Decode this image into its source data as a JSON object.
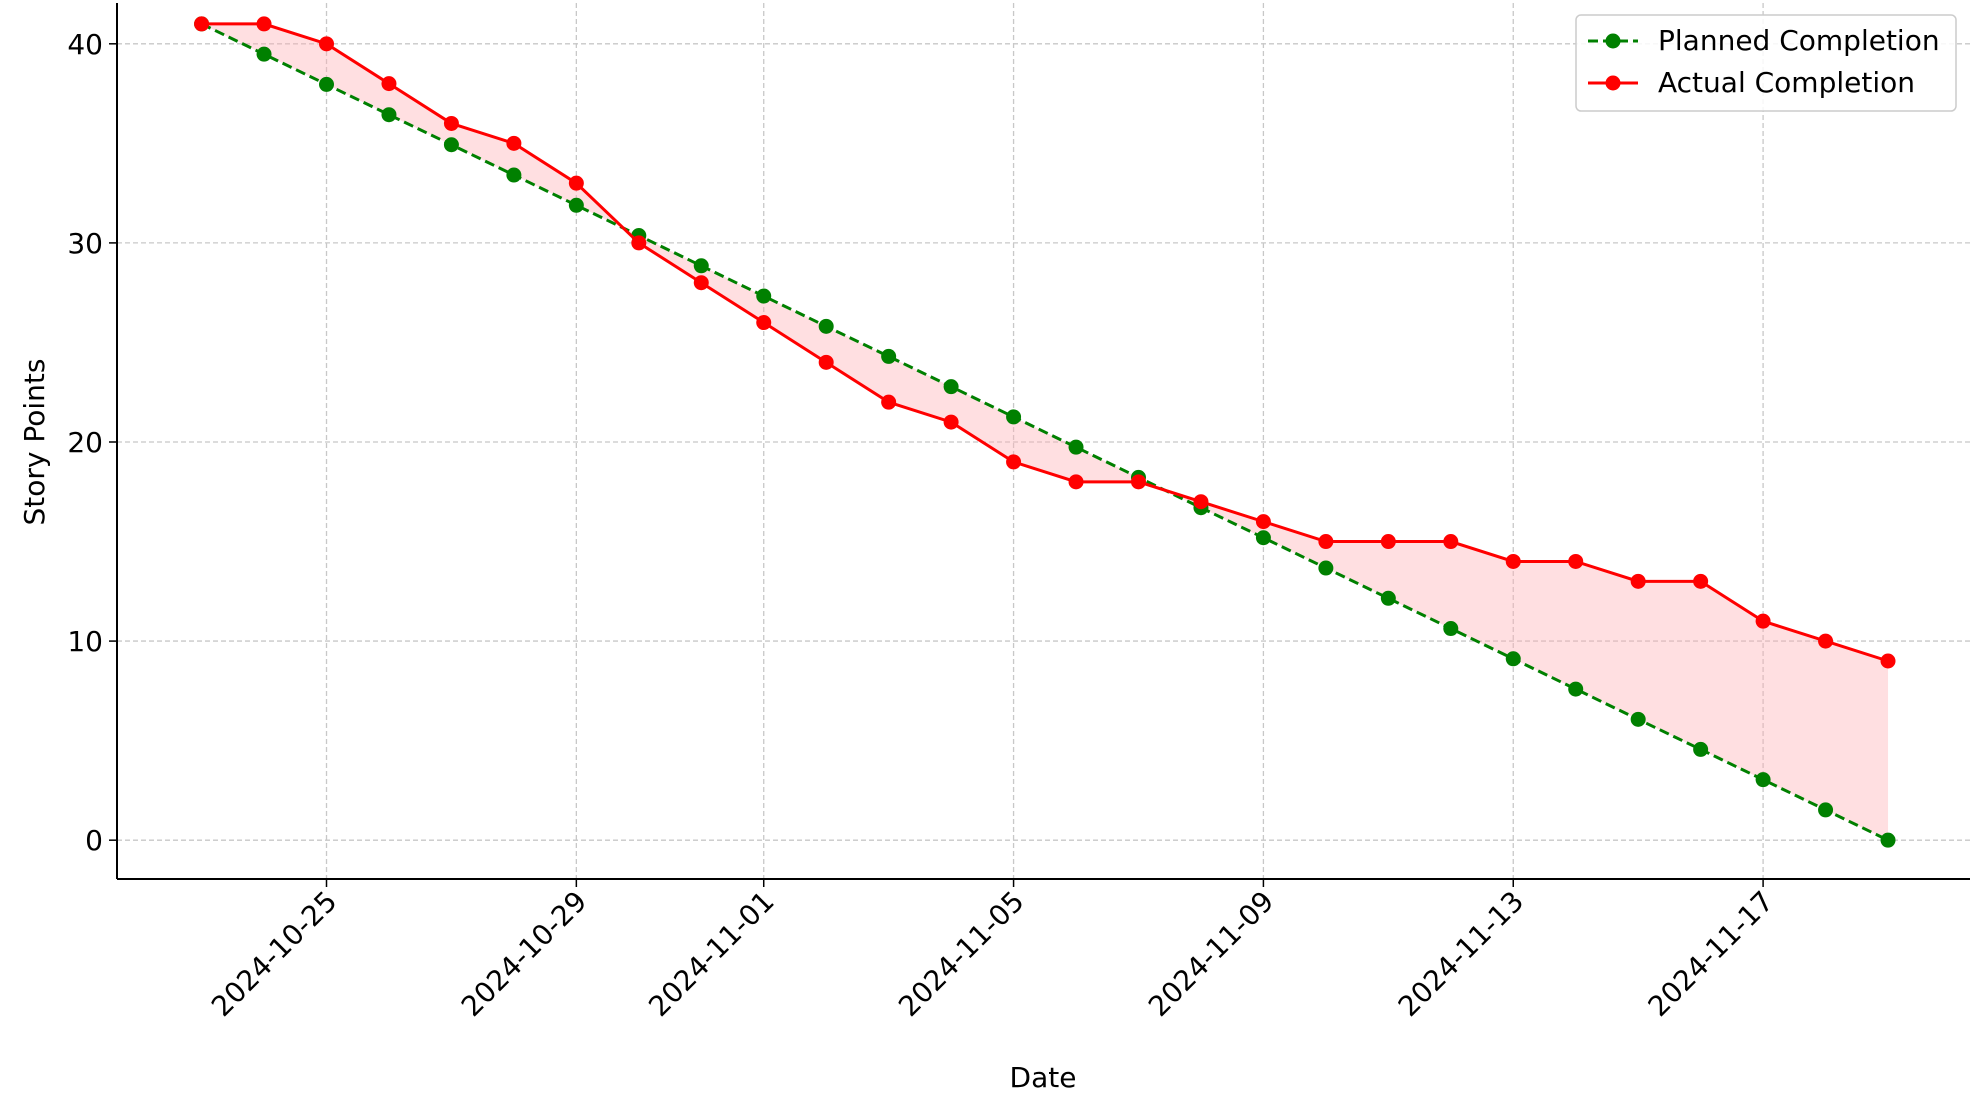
{
  "chart_data": {
    "type": "line",
    "xlabel": "Date",
    "ylabel": "Story Points",
    "x": [
      "2024-10-23",
      "2024-10-24",
      "2024-10-25",
      "2024-10-26",
      "2024-10-27",
      "2024-10-28",
      "2024-10-29",
      "2024-10-30",
      "2024-10-31",
      "2024-11-01",
      "2024-11-02",
      "2024-11-03",
      "2024-11-04",
      "2024-11-05",
      "2024-11-06",
      "2024-11-07",
      "2024-11-08",
      "2024-11-09",
      "2024-11-10",
      "2024-11-11",
      "2024-11-12",
      "2024-11-13",
      "2024-11-14",
      "2024-11-15",
      "2024-11-16",
      "2024-11-17",
      "2024-11-18",
      "2024-11-19"
    ],
    "series": [
      {
        "name": "Planned Completion",
        "color": "#008000",
        "linestyle": "dashed",
        "values": [
          41,
          39.48,
          37.96,
          36.44,
          34.93,
          33.41,
          31.89,
          30.37,
          28.85,
          27.33,
          25.81,
          24.3,
          22.78,
          21.26,
          19.74,
          18.22,
          16.7,
          15.19,
          13.67,
          12.15,
          10.63,
          9.11,
          7.59,
          6.07,
          4.56,
          3.04,
          1.52,
          0
        ]
      },
      {
        "name": "Actual Completion",
        "color": "#ff0000",
        "linestyle": "solid",
        "values": [
          41,
          41,
          40,
          38,
          36,
          35,
          33,
          30,
          28,
          26,
          24,
          22,
          21,
          19,
          18,
          18,
          17,
          16,
          15,
          15,
          15,
          14,
          14,
          13,
          13,
          11,
          10,
          9
        ]
      }
    ],
    "fill_color": "#ffb0b5",
    "xlim": [
      "2024-10-21T15:30",
      "2024-11-20T07:30"
    ],
    "xticks": [
      "2024-10-25",
      "2024-10-29",
      "2024-11-01",
      "2024-11-05",
      "2024-11-09",
      "2024-11-13",
      "2024-11-17"
    ],
    "ylim": [
      -1.95,
      42.05
    ],
    "yticks": [
      0,
      10,
      20,
      30,
      40
    ],
    "grid": true,
    "legend": "upper right"
  }
}
